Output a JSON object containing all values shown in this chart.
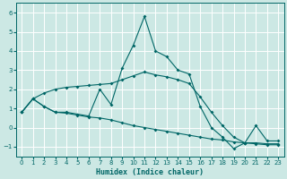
{
  "xlabel": "Humidex (Indice chaleur)",
  "background_color": "#cce8e4",
  "grid_color": "#ffffff",
  "line_color": "#006666",
  "xlim": [
    -0.5,
    23.5
  ],
  "ylim": [
    -1.5,
    6.5
  ],
  "yticks": [
    -1,
    0,
    1,
    2,
    3,
    4,
    5,
    6
  ],
  "xticks": [
    0,
    1,
    2,
    3,
    4,
    5,
    6,
    7,
    8,
    9,
    10,
    11,
    12,
    13,
    14,
    15,
    16,
    17,
    18,
    19,
    20,
    21,
    22,
    23
  ],
  "line1_x": [
    0,
    1,
    2,
    3,
    4,
    5,
    6,
    7,
    8,
    9,
    10,
    11,
    12,
    13,
    14,
    15,
    16,
    17,
    18,
    19,
    20,
    21,
    22,
    23
  ],
  "line1_y": [
    0.8,
    1.5,
    1.1,
    0.8,
    0.8,
    0.7,
    0.6,
    2.0,
    1.2,
    3.1,
    4.3,
    5.8,
    4.0,
    3.7,
    3.0,
    2.8,
    1.1,
    0.0,
    -0.5,
    -1.1,
    -0.8,
    0.1,
    -0.7,
    -0.7
  ],
  "line2_x": [
    0,
    1,
    2,
    3,
    4,
    5,
    6,
    7,
    8,
    9,
    10,
    11,
    12,
    13,
    14,
    15,
    16,
    17,
    18,
    19,
    20,
    21,
    22,
    23
  ],
  "line2_y": [
    0.8,
    1.5,
    1.1,
    0.8,
    0.75,
    0.65,
    0.55,
    0.5,
    0.4,
    0.25,
    0.1,
    0.0,
    -0.1,
    -0.2,
    -0.3,
    -0.4,
    -0.5,
    -0.6,
    -0.65,
    -0.75,
    -0.8,
    -0.85,
    -0.9,
    -0.9
  ],
  "line3_x": [
    0,
    1,
    2,
    3,
    4,
    5,
    6,
    7,
    8,
    9,
    10,
    11,
    12,
    13,
    14,
    15,
    16,
    17,
    18,
    19,
    20,
    21,
    22,
    23
  ],
  "line3_y": [
    0.8,
    1.5,
    1.8,
    2.0,
    2.1,
    2.15,
    2.2,
    2.25,
    2.3,
    2.5,
    2.7,
    2.9,
    2.75,
    2.65,
    2.5,
    2.3,
    1.6,
    0.8,
    0.1,
    -0.5,
    -0.8,
    -0.8,
    -0.85,
    -0.85
  ]
}
